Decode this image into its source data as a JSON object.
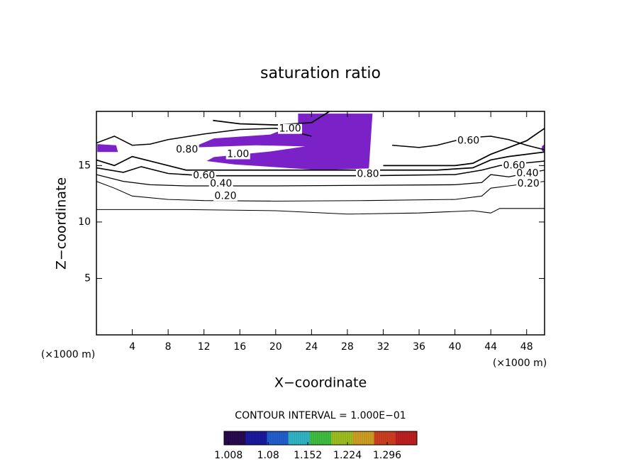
{
  "chart_data": {
    "type": "contour",
    "title": "saturation ratio",
    "x_label": "X−coordinate",
    "y_label": "Z−coordinate",
    "x_unit": "(×1000 m)",
    "y_unit": "(×1000 m)",
    "xlim": [
      0,
      50
    ],
    "ylim": [
      0,
      19.8
    ],
    "xticks": [
      4,
      8,
      12,
      16,
      20,
      24,
      28,
      32,
      36,
      40,
      44,
      48
    ],
    "yticks": [
      5,
      10,
      15
    ],
    "contour_interval": "CONTOUR INTERVAL = 1.000E−01",
    "fill_color": "#7a22c8",
    "filled_regions": [
      {
        "x": [
          22.5,
          30.8,
          30.4,
          24.9,
          15.4,
          12.3,
          13.1,
          19.4,
          23.3,
          17.8,
          10.7,
          13.1,
          19.4,
          22.5
        ],
        "y": [
          19.6,
          19.6,
          14.75,
          14.6,
          15.1,
          15.4,
          15.75,
          16.25,
          16.7,
          16.8,
          16.6,
          17.4,
          17.75,
          18.7
        ]
      },
      {
        "x": [
          0.1,
          2.2,
          2.4,
          0.1
        ],
        "y": [
          16.9,
          16.8,
          16.2,
          16.2
        ]
      },
      {
        "x": [
          49.7,
          50,
          50,
          49.7
        ],
        "y": [
          16.7,
          16.9,
          16.2,
          16.3
        ]
      }
    ],
    "contours": [
      {
        "level": 0.2,
        "x": [
          0,
          10,
          20,
          28,
          36,
          42,
          44,
          45,
          50
        ],
        "y": [
          11.1,
          11.1,
          11.0,
          10.7,
          10.8,
          11.0,
          10.8,
          11.2,
          11.2
        ]
      },
      {
        "level": 0.2,
        "x": [
          0,
          2,
          4,
          8,
          12,
          20,
          30,
          40,
          43,
          44,
          46,
          50
        ],
        "y": [
          13.6,
          13.0,
          12.3,
          12.0,
          11.9,
          11.85,
          11.9,
          12.0,
          12.3,
          13.0,
          13.2,
          13.6
        ]
      },
      {
        "level": 0.4,
        "x": [
          0,
          3,
          6,
          10,
          20,
          30,
          40,
          43,
          44,
          46,
          50
        ],
        "y": [
          14.2,
          13.6,
          13.3,
          13.2,
          13.2,
          13.25,
          13.3,
          13.5,
          14.2,
          14.0,
          14.6
        ]
      },
      {
        "level": 0.6,
        "x": [
          0,
          3,
          5,
          8,
          12,
          20,
          30,
          40,
          43,
          45,
          50
        ],
        "y": [
          14.8,
          14.4,
          14.9,
          14.3,
          14.1,
          14.1,
          14.1,
          14.2,
          14.6,
          15.0,
          15.4
        ]
      },
      {
        "level": 0.8,
        "x": [
          0,
          2,
          4,
          7,
          10,
          20,
          30,
          38,
          42,
          44,
          46,
          50
        ],
        "y": [
          15.5,
          15.0,
          15.8,
          15.2,
          14.6,
          14.6,
          14.6,
          14.6,
          14.8,
          15.5,
          15.8,
          16.2
        ]
      },
      {
        "level": 0.6,
        "x": [
          0,
          2,
          4,
          6,
          8,
          12,
          16,
          20,
          22,
          24
        ],
        "y": [
          17.0,
          17.6,
          16.8,
          16.9,
          17.3,
          17.8,
          18.2,
          18.3,
          18.0,
          17.6
        ]
      },
      {
        "level": 0.6,
        "x": [
          33,
          36,
          38,
          40,
          42,
          44,
          46,
          48,
          50
        ],
        "y": [
          16.8,
          16.6,
          16.8,
          17.2,
          17.5,
          17.6,
          17.3,
          16.8,
          16.4
        ]
      },
      {
        "level": 0.8,
        "x": [
          32,
          36,
          40,
          42,
          44,
          46,
          48,
          50
        ],
        "y": [
          15.0,
          15.0,
          15.0,
          15.2,
          16.0,
          16.6,
          17.2,
          18.3
        ]
      },
      {
        "level": 0.8,
        "x": [
          13,
          16,
          20,
          24,
          26
        ],
        "y": [
          19.0,
          18.7,
          18.6,
          18.8,
          19.8
        ]
      }
    ],
    "contour_labels": [
      {
        "value": 1,
        "label": "1.00",
        "x": 21.6,
        "y": 18.25
      },
      {
        "value": 0.8,
        "label": "0.80",
        "x": 10.1,
        "y": 16.4
      },
      {
        "value": 1,
        "label": "1.00",
        "x": 15.8,
        "y": 16.0
      },
      {
        "value": 0.6,
        "label": "0.60",
        "x": 41.5,
        "y": 17.2
      },
      {
        "value": 0.8,
        "label": "0.80",
        "x": 30.3,
        "y": 14.25
      },
      {
        "value": 0.6,
        "label": "0.60",
        "x": 12.0,
        "y": 14.1
      },
      {
        "value": 0.4,
        "label": "0.40",
        "x": 13.9,
        "y": 13.4
      },
      {
        "value": 0.2,
        "label": "0.20",
        "x": 14.4,
        "y": 12.3
      },
      {
        "value": 0.6,
        "label": "0.60",
        "x": 46.6,
        "y": 15.0
      },
      {
        "value": 0.4,
        "label": "0.40",
        "x": 48.1,
        "y": 14.3
      },
      {
        "value": 0.2,
        "label": "0.20",
        "x": 48.2,
        "y": 13.4
      }
    ],
    "colorbar": {
      "lim": [
        1.0,
        1.35
      ],
      "ticks": [
        1.008,
        1.08,
        1.152,
        1.224,
        1.296
      ],
      "colormap": [
        "#2a0a50",
        "#1a1aa0",
        "#2060d0",
        "#30b8c8",
        "#40c040",
        "#a0c020",
        "#d0a020",
        "#d04020",
        "#c02020"
      ]
    }
  }
}
